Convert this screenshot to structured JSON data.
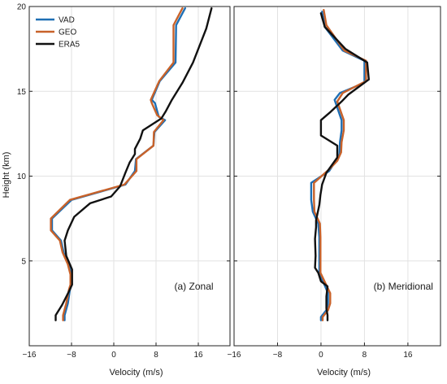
{
  "chart_data": {
    "type": "line",
    "ylabel": "Height (km)",
    "ylim": [
      0,
      20
    ],
    "yticks": [
      5,
      10,
      15,
      20
    ],
    "legend": {
      "placement": "top-left",
      "entries": [
        "VAD",
        "GEO",
        "ERA5"
      ]
    },
    "colors": {
      "VAD": "#1f6fb4",
      "GEO": "#c8622a",
      "ERA5": "#111111"
    },
    "panels": [
      {
        "annotation": "(a) Zonal",
        "xlabel": "Velocity (m/s)",
        "xlim": [
          -16,
          22
        ],
        "xticks": [
          -16,
          -8,
          0,
          8,
          16
        ],
        "xtick_labels": [
          "−16",
          "−8",
          "0",
          "8",
          "16"
        ],
        "grid": true,
        "series": [
          {
            "name": "VAD",
            "points": [
              [
                -9.3,
                1.5
              ],
              [
                -9.3,
                1.8
              ],
              [
                -8.7,
                2.5
              ],
              [
                -8.3,
                3.3
              ],
              [
                -8.0,
                3.6
              ],
              [
                -8.0,
                4.2
              ],
              [
                -8.6,
                4.8
              ],
              [
                -9.5,
                5.5
              ],
              [
                -10.0,
                6.2
              ],
              [
                -11.7,
                6.8
              ],
              [
                -11.7,
                7.5
              ],
              [
                -8.0,
                8.6
              ],
              [
                2.2,
                9.5
              ],
              [
                4.0,
                10.3
              ],
              [
                4.2,
                11.0
              ],
              [
                7.5,
                11.8
              ],
              [
                7.7,
                12.6
              ],
              [
                9.7,
                13.3
              ],
              [
                8.5,
                13.5
              ],
              [
                7.8,
                14.3
              ],
              [
                7.2,
                14.5
              ],
              [
                8.7,
                15.6
              ],
              [
                11.7,
                16.7
              ],
              [
                11.8,
                18.9
              ],
              [
                13.5,
                19.9
              ]
            ]
          },
          {
            "name": "GEO",
            "points": [
              [
                -9.6,
                1.5
              ],
              [
                -9.6,
                1.8
              ],
              [
                -9.0,
                2.5
              ],
              [
                -8.5,
                3.3
              ],
              [
                -8.2,
                3.6
              ],
              [
                -8.2,
                4.2
              ],
              [
                -8.7,
                4.8
              ],
              [
                -9.7,
                5.5
              ],
              [
                -10.2,
                6.2
              ],
              [
                -11.9,
                6.8
              ],
              [
                -11.9,
                7.5
              ],
              [
                -8.3,
                8.6
              ],
              [
                2.0,
                9.5
              ],
              [
                4.3,
                10.3
              ],
              [
                4.3,
                11.0
              ],
              [
                7.5,
                11.8
              ],
              [
                7.6,
                12.6
              ],
              [
                9.4,
                13.3
              ],
              [
                8.2,
                13.6
              ],
              [
                7.2,
                14.3
              ],
              [
                7.0,
                14.5
              ],
              [
                8.6,
                15.6
              ],
              [
                11.3,
                16.7
              ],
              [
                11.3,
                18.9
              ],
              [
                13.0,
                19.9
              ]
            ]
          },
          {
            "name": "ERA5",
            "points": [
              [
                -11.0,
                1.5
              ],
              [
                -11.0,
                1.8
              ],
              [
                -9.8,
                2.4
              ],
              [
                -8.5,
                3.2
              ],
              [
                -7.9,
                3.6
              ],
              [
                -7.9,
                4.5
              ],
              [
                -9.0,
                5.3
              ],
              [
                -9.3,
                6.2
              ],
              [
                -8.7,
                6.8
              ],
              [
                -7.5,
                7.6
              ],
              [
                -4.5,
                8.4
              ],
              [
                -0.5,
                8.8
              ],
              [
                1.2,
                9.4
              ],
              [
                2.2,
                10.2
              ],
              [
                3.0,
                10.8
              ],
              [
                4.0,
                11.3
              ],
              [
                4.0,
                11.6
              ],
              [
                5.0,
                12.2
              ],
              [
                5.5,
                12.7
              ],
              [
                9.0,
                13.4
              ],
              [
                9.8,
                13.8
              ],
              [
                11.0,
                14.5
              ],
              [
                13.0,
                15.5
              ],
              [
                15.0,
                16.7
              ],
              [
                17.5,
                18.7
              ],
              [
                18.5,
                19.9
              ]
            ]
          }
        ]
      },
      {
        "annotation": "(b) Meridional",
        "xlabel": "Velocity (m/s)",
        "xlim": [
          -16,
          22
        ],
        "xticks": [
          -16,
          -8,
          0,
          8,
          16
        ],
        "xtick_labels": [
          "−16",
          "−8",
          "0",
          "8",
          "16"
        ],
        "grid": true,
        "series": [
          {
            "name": "VAD",
            "points": [
              [
                0.0,
                1.5
              ],
              [
                0.0,
                1.7
              ],
              [
                1.0,
                2.1
              ],
              [
                1.3,
                2.5
              ],
              [
                1.3,
                3.1
              ],
              [
                0.5,
                3.7
              ],
              [
                -0.3,
                4.3
              ],
              [
                -0.3,
                5.5
              ],
              [
                -0.3,
                6.4
              ],
              [
                -0.5,
                7.2
              ],
              [
                -1.5,
                7.9
              ],
              [
                -1.8,
                8.6
              ],
              [
                -1.8,
                9.0
              ],
              [
                -1.8,
                9.6
              ],
              [
                1.5,
                10.3
              ],
              [
                2.5,
                10.8
              ],
              [
                3.4,
                11.3
              ],
              [
                3.5,
                12.0
              ],
              [
                3.8,
                12.7
              ],
              [
                3.8,
                13.3
              ],
              [
                2.5,
                14.5
              ],
              [
                3.5,
                14.9
              ],
              [
                8.0,
                15.5
              ],
              [
                8.0,
                16.8
              ],
              [
                4.0,
                17.4
              ],
              [
                0.7,
                18.8
              ],
              [
                0.2,
                19.7
              ]
            ]
          },
          {
            "name": "GEO",
            "points": [
              [
                0.3,
                1.5
              ],
              [
                0.3,
                1.7
              ],
              [
                1.3,
                2.1
              ],
              [
                1.7,
                2.5
              ],
              [
                1.7,
                3.1
              ],
              [
                0.8,
                3.7
              ],
              [
                -0.1,
                4.3
              ],
              [
                -0.1,
                5.5
              ],
              [
                -0.1,
                6.4
              ],
              [
                -0.2,
                7.2
              ],
              [
                -1.2,
                7.9
              ],
              [
                -1.3,
                8.6
              ],
              [
                -1.3,
                9.0
              ],
              [
                -1.3,
                9.6
              ],
              [
                1.5,
                10.4
              ],
              [
                3.0,
                10.9
              ],
              [
                3.7,
                11.4
              ],
              [
                3.8,
                12.0
              ],
              [
                4.2,
                12.7
              ],
              [
                4.2,
                13.3
              ],
              [
                3.0,
                14.4
              ],
              [
                4.0,
                14.9
              ],
              [
                8.3,
                15.6
              ],
              [
                8.3,
                16.8
              ],
              [
                4.3,
                17.4
              ],
              [
                1.0,
                18.9
              ],
              [
                0.5,
                19.8
              ]
            ]
          },
          {
            "name": "ERA5",
            "points": [
              [
                1.2,
                1.5
              ],
              [
                1.2,
                1.8
              ],
              [
                1.0,
                2.2
              ],
              [
                1.0,
                2.9
              ],
              [
                1.2,
                3.5
              ],
              [
                0.0,
                3.8
              ],
              [
                -0.5,
                4.3
              ],
              [
                -1.1,
                4.6
              ],
              [
                -1.0,
                5.3
              ],
              [
                -1.1,
                6.3
              ],
              [
                -0.9,
                7.0
              ],
              [
                -0.9,
                7.4
              ],
              [
                -0.3,
                8.3
              ],
              [
                -0.1,
                8.9
              ],
              [
                0.2,
                9.5
              ],
              [
                1.0,
                10.2
              ],
              [
                3.0,
                11.1
              ],
              [
                3.0,
                11.8
              ],
              [
                0.0,
                12.4
              ],
              [
                0.0,
                13.3
              ],
              [
                1.8,
                13.8
              ],
              [
                3.8,
                14.4
              ],
              [
                5.0,
                14.8
              ],
              [
                8.8,
                15.7
              ],
              [
                8.5,
                16.7
              ],
              [
                4.5,
                17.5
              ],
              [
                0.7,
                18.8
              ],
              [
                0.0,
                19.6
              ]
            ]
          }
        ]
      }
    ]
  }
}
